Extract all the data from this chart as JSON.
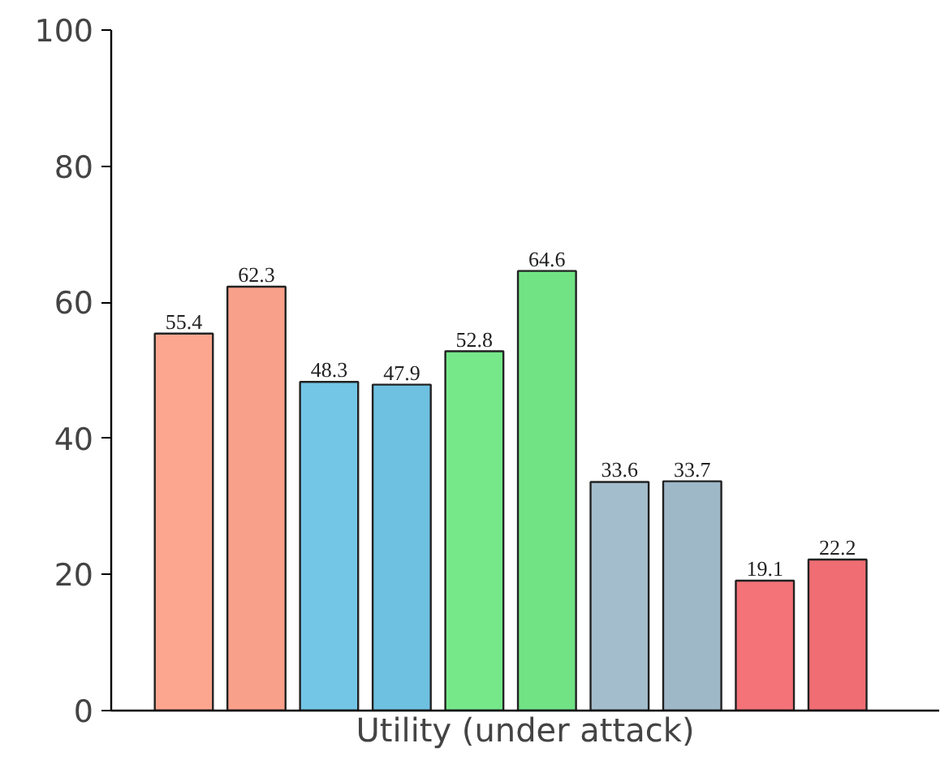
{
  "chart_data": {
    "type": "bar",
    "xlabel": "Utility (under attack)",
    "categories": [
      null,
      null,
      null,
      null,
      null,
      null,
      null,
      null,
      null,
      null
    ],
    "values": [
      55.4,
      62.3,
      48.3,
      47.9,
      52.8,
      64.6,
      33.6,
      33.7,
      19.1,
      22.2
    ],
    "colors": [
      "#fca690",
      "#f9a08a",
      "#73c6e6",
      "#6fc1e2",
      "#77e88a",
      "#72e385",
      "#a3bdcc",
      "#9fb8c8",
      "#f37378",
      "#ef6d73"
    ],
    "ylim": [
      0,
      100
    ],
    "yticks": [
      0,
      20,
      40,
      60,
      80,
      100
    ],
    "grid": false,
    "data_labels": true
  }
}
